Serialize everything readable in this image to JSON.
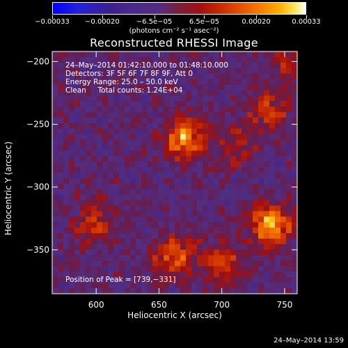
{
  "chart_data": {
    "type": "heatmap",
    "title": "Reconstructed RHESSI Image",
    "xlabel": "Heliocentric X (arcsec)",
    "ylabel": "Heliocentric Y (arcsec)",
    "xlim": [
      565,
      760
    ],
    "ylim": [
      -385,
      -192
    ],
    "x_ticks": [
      600,
      650,
      700,
      750
    ],
    "x_tick_labels": [
      "600",
      "650",
      "700",
      "750"
    ],
    "y_ticks": [
      -200,
      -250,
      -300,
      -350
    ],
    "y_tick_labels": [
      "−200",
      "−250",
      "−300",
      "−350"
    ],
    "colorbar": {
      "range": [
        -0.00033,
        0.00033
      ],
      "ticks": [
        -0.00033,
        -0.0002,
        -6.5e-05,
        6.5e-05,
        0.0002,
        0.00033
      ],
      "tick_labels": [
        "−0.00033",
        "−0.00020",
        "−6.5e−05",
        "6.5e−05",
        "0.00020",
        "0.00033"
      ],
      "units_label": "(photons cm⁻² s⁻¹ asec⁻²)"
    },
    "annotations": {
      "time_range": "24–May–2014 01:42:10.000 to 01:48:10.000",
      "detectors": "Detectors: 3F 5F 6F 7F 8F 9F, Att 0",
      "energy": "Energy Range: 25.0 – 50.0 keV",
      "algorithm": "Clean     Total counts: 1.24E+04",
      "peak": "Position of Peak = [739,−331]"
    },
    "peak_position": [
      739,
      -331
    ],
    "sources": [
      {
        "x": 739,
        "y": -331,
        "intensity": 0.00033
      },
      {
        "x": 671,
        "y": -262,
        "intensity": 0.0003
      },
      {
        "x": 662,
        "y": -355,
        "intensity": 0.00022
      },
      {
        "x": 738,
        "y": -240,
        "intensity": 0.00018
      },
      {
        "x": 700,
        "y": -360,
        "intensity": 0.00018
      },
      {
        "x": 600,
        "y": -330,
        "intensity": 0.00016
      },
      {
        "x": 752,
        "y": -200,
        "intensity": 0.00014
      },
      {
        "x": 712,
        "y": -267,
        "intensity": 0.00012
      }
    ]
  },
  "colors": {
    "background": "#000000",
    "text": "#ffffff",
    "colormap": [
      "#0000ff",
      "#3c1f8e",
      "#512e83",
      "#a01010",
      "#e55000",
      "#fdb000",
      "#ffffff"
    ]
  },
  "footer": {
    "timestamp": "24–May–2014 13:59"
  }
}
